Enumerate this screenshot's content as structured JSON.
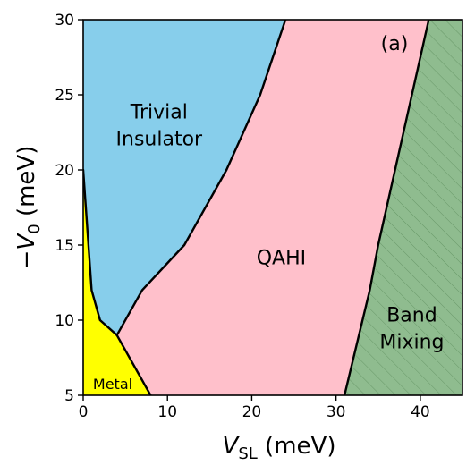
{
  "chart_data": {
    "type": "area",
    "panel_label": "(a)",
    "xlabel": "V_SL (meV)",
    "ylabel": "-V_0 (meV)",
    "xlabel_parts": {
      "var": "V",
      "sub": "SL",
      "unit": " (meV)"
    },
    "ylabel_parts": {
      "sign": "−",
      "var": "V",
      "sub": "0",
      "unit": " (meV)"
    },
    "xlim": [
      0,
      45
    ],
    "ylim": [
      5,
      30
    ],
    "xticks": [
      0,
      10,
      20,
      30,
      40
    ],
    "yticks": [
      5,
      10,
      15,
      20,
      25,
      30
    ],
    "grid": false,
    "regions": [
      {
        "name": "Trivial Insulator",
        "label_lines": [
          "Trivial",
          "Insulator"
        ],
        "label_at": [
          9,
          23
        ],
        "color": "#87ceeb",
        "polygon": [
          [
            0,
            30
          ],
          [
            24,
            30
          ],
          [
            21,
            25
          ],
          [
            17,
            20
          ],
          [
            12,
            15
          ],
          [
            7,
            12
          ],
          [
            4,
            9
          ],
          [
            2,
            10
          ],
          [
            1,
            12
          ],
          [
            0,
            20
          ]
        ]
      },
      {
        "name": "QAHI",
        "label_lines": [
          "QAHI"
        ],
        "label_at": [
          23.5,
          14.2
        ],
        "color": "#ffc0cb",
        "polygon": [
          [
            24,
            30
          ],
          [
            41,
            30
          ],
          [
            35,
            15
          ],
          [
            34,
            12
          ],
          [
            31,
            5
          ],
          [
            8,
            5
          ],
          [
            4,
            9
          ],
          [
            7,
            12
          ],
          [
            12,
            15
          ],
          [
            17,
            20
          ],
          [
            21,
            25
          ]
        ]
      },
      {
        "name": "Band Mixing",
        "label_lines": [
          "Band",
          "Mixing"
        ],
        "label_at": [
          39,
          9.5
        ],
        "color": "#8fbc8f",
        "hatched": true,
        "polygon": [
          [
            41,
            30
          ],
          [
            45,
            30
          ],
          [
            45,
            5
          ],
          [
            31,
            5
          ],
          [
            34,
            12
          ],
          [
            35,
            15
          ]
        ]
      },
      {
        "name": "Metal",
        "label_lines": [
          "Metal"
        ],
        "label_at": [
          3.5,
          5.7
        ],
        "color": "#ffff00",
        "small": true,
        "polygon": [
          [
            0,
            5
          ],
          [
            8,
            5
          ],
          [
            4,
            9
          ],
          [
            2,
            10
          ],
          [
            1,
            12
          ],
          [
            0,
            20
          ]
        ]
      }
    ],
    "boundaries": [
      [
        [
          0,
          20
        ],
        [
          1,
          12
        ],
        [
          2,
          10
        ],
        [
          4,
          9
        ]
      ],
      [
        [
          4,
          9
        ],
        [
          7,
          12
        ],
        [
          12,
          15
        ],
        [
          17,
          20
        ],
        [
          21,
          25
        ],
        [
          24,
          30
        ]
      ],
      [
        [
          4,
          9
        ],
        [
          8,
          5
        ]
      ],
      [
        [
          31,
          5
        ],
        [
          34,
          12
        ],
        [
          35,
          15
        ],
        [
          41,
          30
        ]
      ]
    ]
  }
}
